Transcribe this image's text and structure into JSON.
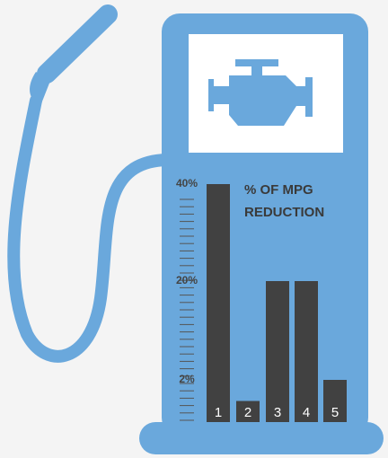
{
  "chart_data": {
    "type": "bar",
    "title": [
      "% OF MPG",
      "REDUCTION"
    ],
    "categories": [
      "1",
      "2",
      "3",
      "4",
      "5"
    ],
    "values": [
      40,
      1,
      20,
      20,
      2
    ],
    "color": "#414141",
    "ylim": [
      0,
      40
    ],
    "yticks": [
      {
        "value": 2,
        "label": "2%"
      },
      {
        "value": 20,
        "label": "20%"
      },
      {
        "value": 40,
        "label": "40%"
      }
    ]
  }
}
